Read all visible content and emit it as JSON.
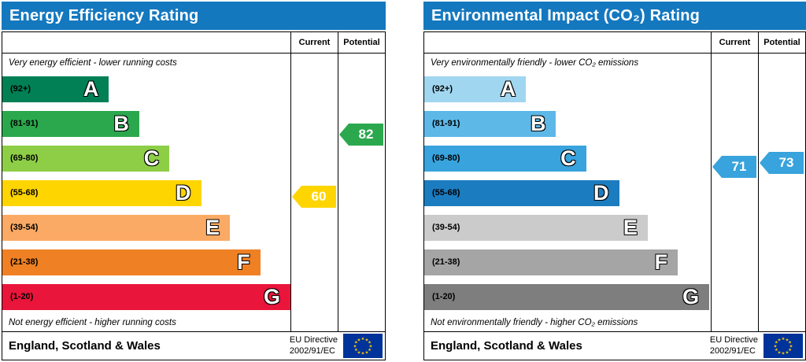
{
  "chart_data": [
    {
      "type": "bar",
      "chart_kind": "epc-rating",
      "title": "Energy Efficiency Rating",
      "header_color": "#1478bf",
      "columns": [
        "Current",
        "Potential"
      ],
      "top_caption": "Very energy efficient - lower running costs",
      "bottom_caption": "Not energy efficient - higher running costs",
      "bands": [
        {
          "range_label": "(92+)",
          "letter": "A",
          "min": 92,
          "max": 100,
          "color": "#008054",
          "width_pct": 37
        },
        {
          "range_label": "(81-91)",
          "letter": "B",
          "min": 81,
          "max": 91,
          "color": "#2ba84e",
          "width_pct": 47.5
        },
        {
          "range_label": "(69-80)",
          "letter": "C",
          "min": 69,
          "max": 80,
          "color": "#8dce46",
          "width_pct": 58
        },
        {
          "range_label": "(55-68)",
          "letter": "D",
          "min": 55,
          "max": 68,
          "color": "#ffd500",
          "width_pct": 69
        },
        {
          "range_label": "(39-54)",
          "letter": "E",
          "min": 39,
          "max": 54,
          "color": "#fbaa65",
          "width_pct": 79
        },
        {
          "range_label": "(21-38)",
          "letter": "F",
          "min": 21,
          "max": 38,
          "color": "#ef8023",
          "width_pct": 89.5
        },
        {
          "range_label": "(1-20)",
          "letter": "G",
          "min": 1,
          "max": 20,
          "color": "#e9153b",
          "width_pct": 100
        }
      ],
      "scores": {
        "current": 60,
        "potential": 82
      },
      "pointer_colors": {
        "current": "#ffd500",
        "potential": "#2ba84e"
      },
      "footer": {
        "region": "England, Scotland & Wales",
        "directive_line1": "EU Directive",
        "directive_line2": "2002/91/EC"
      }
    },
    {
      "type": "bar",
      "chart_kind": "epc-rating",
      "title": "Environmental Impact (CO₂) Rating",
      "header_color": "#1478bf",
      "columns": [
        "Current",
        "Potential"
      ],
      "top_caption": "Very environmentally friendly - lower CO₂ emissions",
      "bottom_caption": "Not environmentally friendly - higher CO₂ emissions",
      "bands": [
        {
          "range_label": "(92+)",
          "letter": "A",
          "min": 92,
          "max": 100,
          "color": "#a1d6f0",
          "width_pct": 35.5
        },
        {
          "range_label": "(81-91)",
          "letter": "B",
          "min": 81,
          "max": 91,
          "color": "#5db8e8",
          "width_pct": 46
        },
        {
          "range_label": "(69-80)",
          "letter": "C",
          "min": 69,
          "max": 80,
          "color": "#38a3dc",
          "width_pct": 56.5
        },
        {
          "range_label": "(55-68)",
          "letter": "D",
          "min": 55,
          "max": 68,
          "color": "#1c7cc0",
          "width_pct": 68
        },
        {
          "range_label": "(39-54)",
          "letter": "E",
          "min": 39,
          "max": 54,
          "color": "#cbcbcb",
          "width_pct": 78
        },
        {
          "range_label": "(21-38)",
          "letter": "F",
          "min": 21,
          "max": 38,
          "color": "#a5a5a5",
          "width_pct": 88.5
        },
        {
          "range_label": "(1-20)",
          "letter": "G",
          "min": 1,
          "max": 20,
          "color": "#7e7e7e",
          "width_pct": 99.5
        }
      ],
      "scores": {
        "current": 71,
        "potential": 73
      },
      "pointer_colors": {
        "current": "#38a3dc",
        "potential": "#38a3dc"
      },
      "footer": {
        "region": "England, Scotland & Wales",
        "directive_line1": "EU Directive",
        "directive_line2": "2002/91/EC"
      }
    }
  ]
}
